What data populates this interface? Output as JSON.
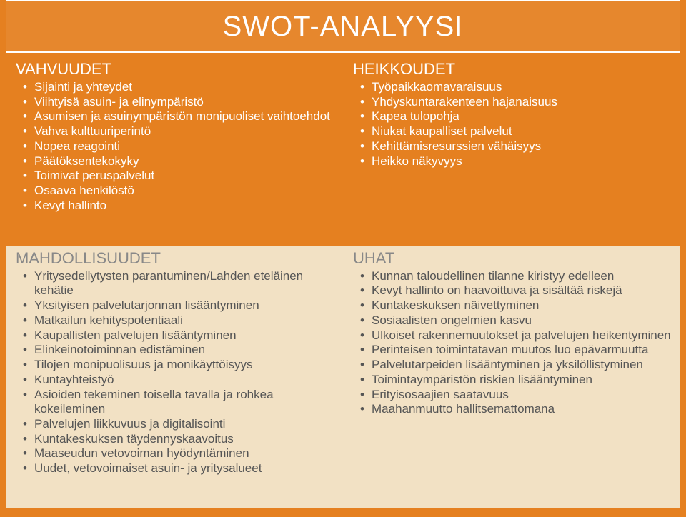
{
  "title": "SWOT-ANALYYSI",
  "colors": {
    "slide_bg": "#e58020",
    "title_text": "#ffffff",
    "top_text": "#ffffff",
    "bottom_bg": "#f2e1c4",
    "bottom_heading": "#888888",
    "bottom_text": "#555555",
    "title_border": "#ffffff"
  },
  "quadrants": {
    "strengths": {
      "heading": "VAHVUUDET",
      "items": [
        "Sijainti ja yhteydet",
        "Viihtyisä asuin- ja elinympäristö",
        "Asumisen ja asuinympäristön monipuoliset vaihtoehdot",
        "Vahva kulttuuriperintö",
        "Nopea reagointi",
        "Päätöksentekokyky",
        "Toimivat peruspalvelut",
        "Osaava henkilöstö",
        "Kevyt hallinto"
      ]
    },
    "weaknesses": {
      "heading": "HEIKKOUDET",
      "items": [
        "Työpaikkaomavaraisuus",
        "Yhdyskuntarakenteen  hajanaisuus",
        "Kapea tulopohja",
        "Niukat kaupalliset palvelut",
        "Kehittämisresurssien vähäisyys",
        "Heikko näkyvyys"
      ]
    },
    "opportunities": {
      "heading": "MAHDOLLISUUDET",
      "items": [
        "Yritysedellytysten parantuminen/Lahden eteläinen kehätie",
        "Yksityisen palvelutarjonnan lisääntyminen",
        "Matkailun kehityspotentiaali",
        "Kaupallisten palvelujen lisääntyminen",
        "Elinkeinotoiminnan edistäminen",
        "Tilojen monipuolisuus ja monikäyttöisyys",
        "Kuntayhteistyö",
        "Asioiden tekeminen toisella tavalla ja rohkea kokeileminen",
        "Palvelujen liikkuvuus ja digitalisointi",
        "Kuntakeskuksen täydennyskaavoitus",
        "Maaseudun vetovoiman hyödyntäminen",
        "Uudet, vetovoimaiset asuin- ja yritysalueet"
      ]
    },
    "threats": {
      "heading": "UHAT",
      "items": [
        "Kunnan taloudellinen tilanne kiristyy edelleen",
        "Kevyt hallinto on haavoittuva ja sisältää riskejä",
        "Kuntakeskuksen näivettyminen",
        "Sosiaalisten ongelmien kasvu",
        "Ulkoiset rakennemuutokset ja palvelujen heikentyminen",
        "Perinteisen toimintatavan muutos luo epävarmuutta",
        "Palvelutarpeiden lisääntyminen ja yksilöllistyminen",
        "Toimintaympäristön riskien lisääntyminen",
        "Erityisosaajien saatavuus",
        "Maahanmuutto hallitsemattomana"
      ]
    }
  }
}
